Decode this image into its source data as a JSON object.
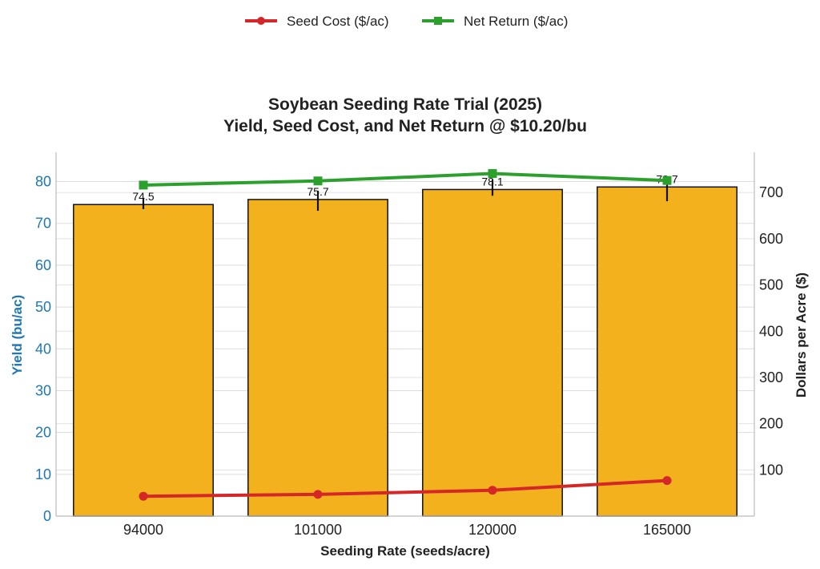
{
  "chart_data": {
    "type": "bar",
    "title_lines": [
      "Soybean Seeding Rate Trial (2025)",
      "Yield, Seed Cost, and Net Return @ $10.20/bu"
    ],
    "categories": [
      "94000",
      "101000",
      "120000",
      "165000"
    ],
    "xlabel": "Seeding Rate (seeds/acre)",
    "ylabel": "Yield (bu/ac)",
    "ylabel_right": "Dollars per Acre ($)",
    "ylim": [
      0,
      87
    ],
    "ylim_right": [
      0,
      787
    ],
    "yticks": [
      0,
      10,
      20,
      30,
      40,
      50,
      60,
      70,
      80
    ],
    "yticks_right": [
      100,
      200,
      300,
      400,
      500,
      600,
      700
    ],
    "bar_series": {
      "name": "Yield (bu/ac)",
      "values": [
        74.5,
        75.7,
        78.1,
        78.7
      ],
      "labels": [
        "74.5",
        "75.7",
        "78.1",
        "78.7"
      ],
      "error_low": [
        73.4,
        73.0,
        76.6,
        75.3
      ],
      "error_high": [
        76.1,
        77.8,
        80.5,
        81.0
      ],
      "color": "#f3b21d",
      "edge_color": "#111111"
    },
    "line_series": [
      {
        "name": "Seed Cost ($/ac)",
        "axis": "right",
        "marker": "circle",
        "color": "#d62728",
        "values": [
          43,
          47,
          56,
          77
        ]
      },
      {
        "name": "Net Return ($/ac)",
        "axis": "right",
        "marker": "square",
        "color": "#2ca02c",
        "values": [
          716,
          725,
          741,
          726
        ]
      }
    ],
    "legend_position": "top-center",
    "grid": true,
    "left_axis_color": "#1f77b4"
  }
}
